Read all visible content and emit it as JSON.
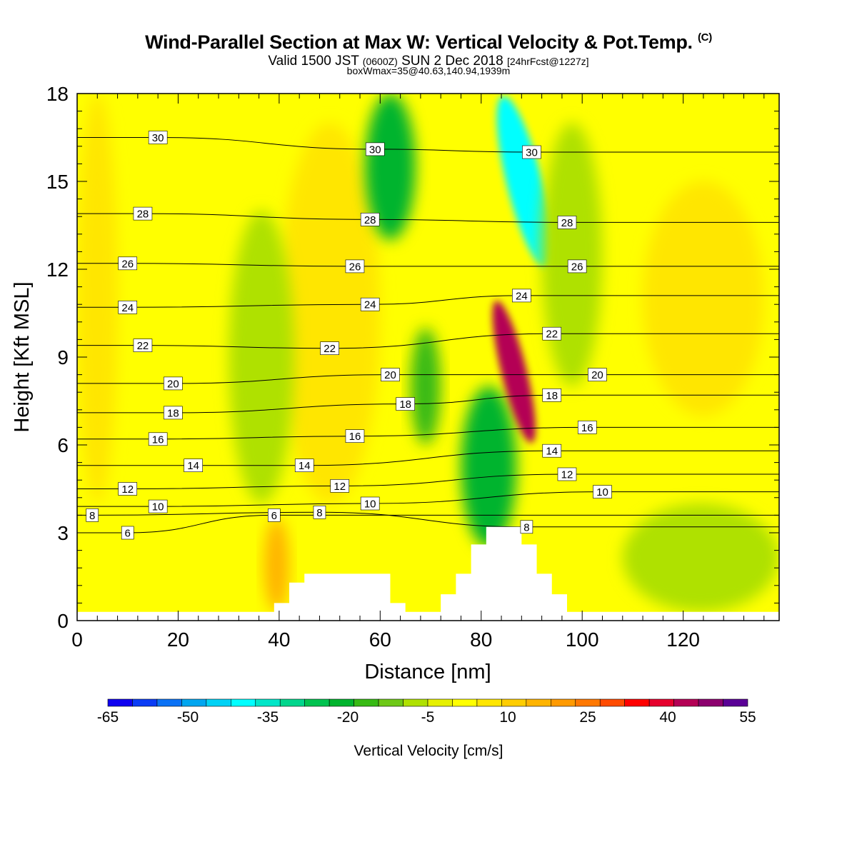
{
  "title": {
    "main": "Wind-Parallel Section at Max W: Vertical Velocity & Pot.Temp.",
    "mark": "(C)"
  },
  "subtitle": {
    "valid": "Valid 1500 JST",
    "zulu": "(0600Z)",
    "date": "SUN 2 Dec 2018",
    "forecast": "[24hrFcst@1227z]"
  },
  "subtitle2": "boxWmax=35@40.63,140.94,1939m",
  "chart_data": {
    "type": "heatmap",
    "xlabel": "Distance [nm]",
    "ylabel": "Height [Kft MSL]",
    "xlim": [
      0,
      139
    ],
    "ylim": [
      0,
      18
    ],
    "xticks": [
      0,
      20,
      40,
      60,
      80,
      100,
      120
    ],
    "yticks": [
      0,
      3,
      6,
      9,
      12,
      15,
      18
    ],
    "colorbar": {
      "label": "Vertical Velocity [cm/s]",
      "tick_labels": [
        "-65",
        "-50",
        "-35",
        "-20",
        "-5",
        "10",
        "25",
        "40",
        "55"
      ],
      "min": -65,
      "max": 55,
      "step": 5,
      "colors": [
        "#0f00f0",
        "#0a3cf5",
        "#0a72f5",
        "#00a6f0",
        "#00d2f5",
        "#00ffff",
        "#00e6c8",
        "#00d68c",
        "#00c350",
        "#00b42d",
        "#37ba14",
        "#6ec817",
        "#afe100",
        "#e6f000",
        "#ffff00",
        "#ffe600",
        "#ffcd00",
        "#ffb400",
        "#ff9a00",
        "#ff7800",
        "#ff4b00",
        "#ff0000",
        "#e6002d",
        "#b40055",
        "#8c006e",
        "#5a0096"
      ]
    },
    "vertical_velocity_regions": [
      {
        "kind": "background",
        "value": 5
      },
      {
        "kind": "updraft",
        "x": [
          0,
          8
        ],
        "y": [
          4,
          18
        ],
        "value": 10
      },
      {
        "kind": "updraft",
        "x": [
          40,
          60
        ],
        "y": [
          4,
          17
        ],
        "value": 12
      },
      {
        "kind": "downdraft",
        "x": [
          30,
          43
        ],
        "y": [
          4,
          14
        ],
        "value": -5
      },
      {
        "kind": "downdraft",
        "x": [
          57,
          67
        ],
        "y": [
          13,
          18
        ],
        "value": -20
      },
      {
        "kind": "downdraft",
        "x": [
          66,
          72
        ],
        "y": [
          6,
          10
        ],
        "value": -15
      },
      {
        "kind": "downdraft",
        "x": [
          76,
          87
        ],
        "y": [
          2.5,
          8
        ],
        "value": -20
      },
      {
        "kind": "updraft_core",
        "x": [
          84,
          89
        ],
        "y": [
          6,
          11
        ],
        "value": 50
      },
      {
        "kind": "downdraft_core",
        "x": [
          85,
          92
        ],
        "y": [
          12,
          18
        ],
        "value": -40
      },
      {
        "kind": "downdraft",
        "x": [
          92,
          104
        ],
        "y": [
          8,
          17
        ],
        "value": -5
      },
      {
        "kind": "updraft",
        "x": [
          112,
          136
        ],
        "y": [
          7,
          15
        ],
        "value": 10
      },
      {
        "kind": "downdraft",
        "x": [
          108,
          139
        ],
        "y": [
          0.3,
          4
        ],
        "value": -5
      },
      {
        "kind": "updraft",
        "x": [
          37,
          42
        ],
        "y": [
          0.3,
          3.5
        ],
        "value": 20
      }
    ],
    "potential_temperature_labels": [
      {
        "value": "30",
        "x": 16,
        "y": 16.5
      },
      {
        "value": "30",
        "x": 59,
        "y": 16.1
      },
      {
        "value": "30",
        "x": 90,
        "y": 16.0
      },
      {
        "value": "28",
        "x": 13,
        "y": 13.9
      },
      {
        "value": "28",
        "x": 58,
        "y": 13.7
      },
      {
        "value": "28",
        "x": 97,
        "y": 13.6
      },
      {
        "value": "26",
        "x": 10,
        "y": 12.2
      },
      {
        "value": "26",
        "x": 55,
        "y": 12.1
      },
      {
        "value": "26",
        "x": 99,
        "y": 12.1
      },
      {
        "value": "24",
        "x": 10,
        "y": 10.7
      },
      {
        "value": "24",
        "x": 58,
        "y": 10.8
      },
      {
        "value": "24",
        "x": 88,
        "y": 11.1
      },
      {
        "value": "22",
        "x": 13,
        "y": 9.4
      },
      {
        "value": "22",
        "x": 50,
        "y": 9.3
      },
      {
        "value": "22",
        "x": 94,
        "y": 9.8
      },
      {
        "value": "20",
        "x": 19,
        "y": 8.1
      },
      {
        "value": "20",
        "x": 62,
        "y": 8.4
      },
      {
        "value": "20",
        "x": 103,
        "y": 8.4
      },
      {
        "value": "18",
        "x": 19,
        "y": 7.1
      },
      {
        "value": "18",
        "x": 65,
        "y": 7.4
      },
      {
        "value": "18",
        "x": 94,
        "y": 7.7
      },
      {
        "value": "16",
        "x": 16,
        "y": 6.2
      },
      {
        "value": "16",
        "x": 55,
        "y": 6.3
      },
      {
        "value": "16",
        "x": 101,
        "y": 6.6
      },
      {
        "value": "14",
        "x": 23,
        "y": 5.3
      },
      {
        "value": "14",
        "x": 45,
        "y": 5.3
      },
      {
        "value": "14",
        "x": 94,
        "y": 5.8
      },
      {
        "value": "12",
        "x": 10,
        "y": 4.5
      },
      {
        "value": "12",
        "x": 52,
        "y": 4.6
      },
      {
        "value": "12",
        "x": 97,
        "y": 5.0
      },
      {
        "value": "10",
        "x": 16,
        "y": 3.9
      },
      {
        "value": "10",
        "x": 58,
        "y": 4.0
      },
      {
        "value": "10",
        "x": 104,
        "y": 4.4
      },
      {
        "value": "8",
        "x": 3,
        "y": 3.6
      },
      {
        "value": "8",
        "x": 48,
        "y": 3.7
      },
      {
        "value": "8",
        "x": 89,
        "y": 3.2
      },
      {
        "value": "6",
        "x": 39,
        "y": 3.6
      },
      {
        "value": "6",
        "x": 10,
        "y": 3.0
      }
    ],
    "terrain_steps": [
      [
        38,
        0.3
      ],
      [
        39,
        0.6
      ],
      [
        42,
        1.3
      ],
      [
        45,
        1.6
      ],
      [
        61,
        1.6
      ],
      [
        62,
        0.6
      ],
      [
        65,
        0.3
      ],
      [
        71,
        0.3
      ],
      [
        72,
        0.9
      ],
      [
        75,
        1.6
      ],
      [
        78,
        2.6
      ],
      [
        81,
        3.2
      ],
      [
        87,
        3.2
      ],
      [
        88,
        2.6
      ],
      [
        91,
        1.6
      ],
      [
        94,
        0.9
      ],
      [
        97,
        0.3
      ],
      [
        139,
        0.3
      ]
    ]
  }
}
